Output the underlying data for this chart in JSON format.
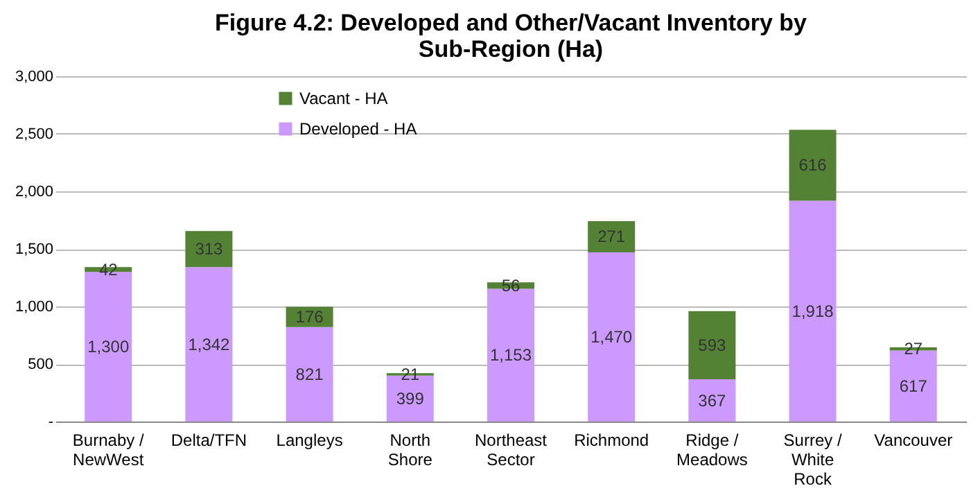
{
  "chart_data": {
    "type": "bar",
    "title": "Figure 4.2: Developed and Other/Vacant Inventory by Sub-Region (Ha)",
    "categories": [
      "Burnaby / NewWest",
      "Delta/TFN",
      "Langleys",
      "North Shore",
      "Northeast Sector",
      "Richmond",
      "Ridge / Meadows",
      "Surrey / White Rock",
      "Vancouver"
    ],
    "stacked": true,
    "series": [
      {
        "name": "Developed - HA",
        "color": "#cc99ff",
        "values": [
          1300,
          1342,
          821,
          399,
          1153,
          1470,
          367,
          1918,
          617
        ],
        "value_labels": [
          "1,300",
          "1,342",
          "821",
          "399",
          "1,153",
          "1,470",
          "367",
          "1,918",
          "617"
        ]
      },
      {
        "name": "Vacant - HA",
        "color": "#548235",
        "values": [
          42,
          313,
          176,
          21,
          56,
          271,
          593,
          616,
          27
        ],
        "value_labels": [
          "42",
          "313",
          "176",
          "21",
          "56",
          "271",
          "593",
          "616",
          "27"
        ]
      }
    ],
    "ylim": [
      0,
      3000
    ],
    "yticks": [
      {
        "value": 0,
        "label": "-"
      },
      {
        "value": 500,
        "label": "500"
      },
      {
        "value": 1000,
        "label": "1,000"
      },
      {
        "value": 1500,
        "label": "1,500"
      },
      {
        "value": 2000,
        "label": "2,000"
      },
      {
        "value": 2500,
        "label": "2,500"
      },
      {
        "value": 3000,
        "label": "3,000"
      }
    ],
    "grid": "y",
    "legend": "top"
  }
}
